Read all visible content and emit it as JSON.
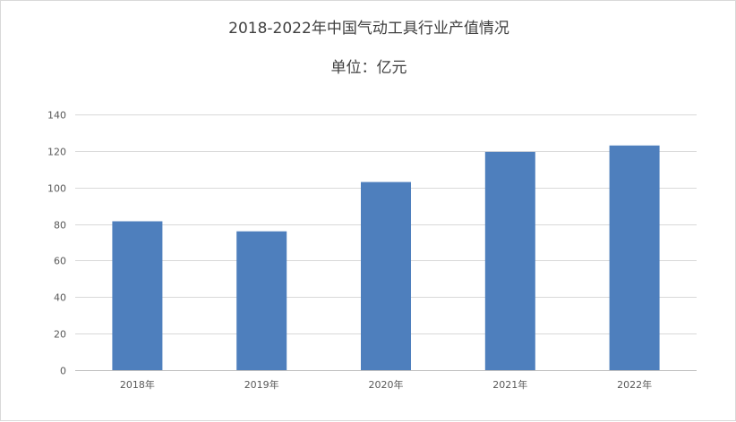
{
  "chart_data": {
    "type": "bar",
    "title": "2018-2022年中国气动工具行业产值情况",
    "subtitle": "单位：亿元",
    "categories": [
      "2018年",
      "2019年",
      "2020年",
      "2021年",
      "2022年"
    ],
    "series": [
      {
        "values": [
          81.5,
          76,
          103,
          119.5,
          123
        ]
      }
    ],
    "ylim": [
      0,
      140
    ],
    "yticks": [
      0,
      20,
      40,
      60,
      80,
      100,
      120,
      140
    ],
    "grid": true,
    "legend": "none",
    "colors": {
      "bar": "#4e7fbd",
      "grid": "#d9d9d9",
      "axis": "#bfbfbf"
    }
  }
}
